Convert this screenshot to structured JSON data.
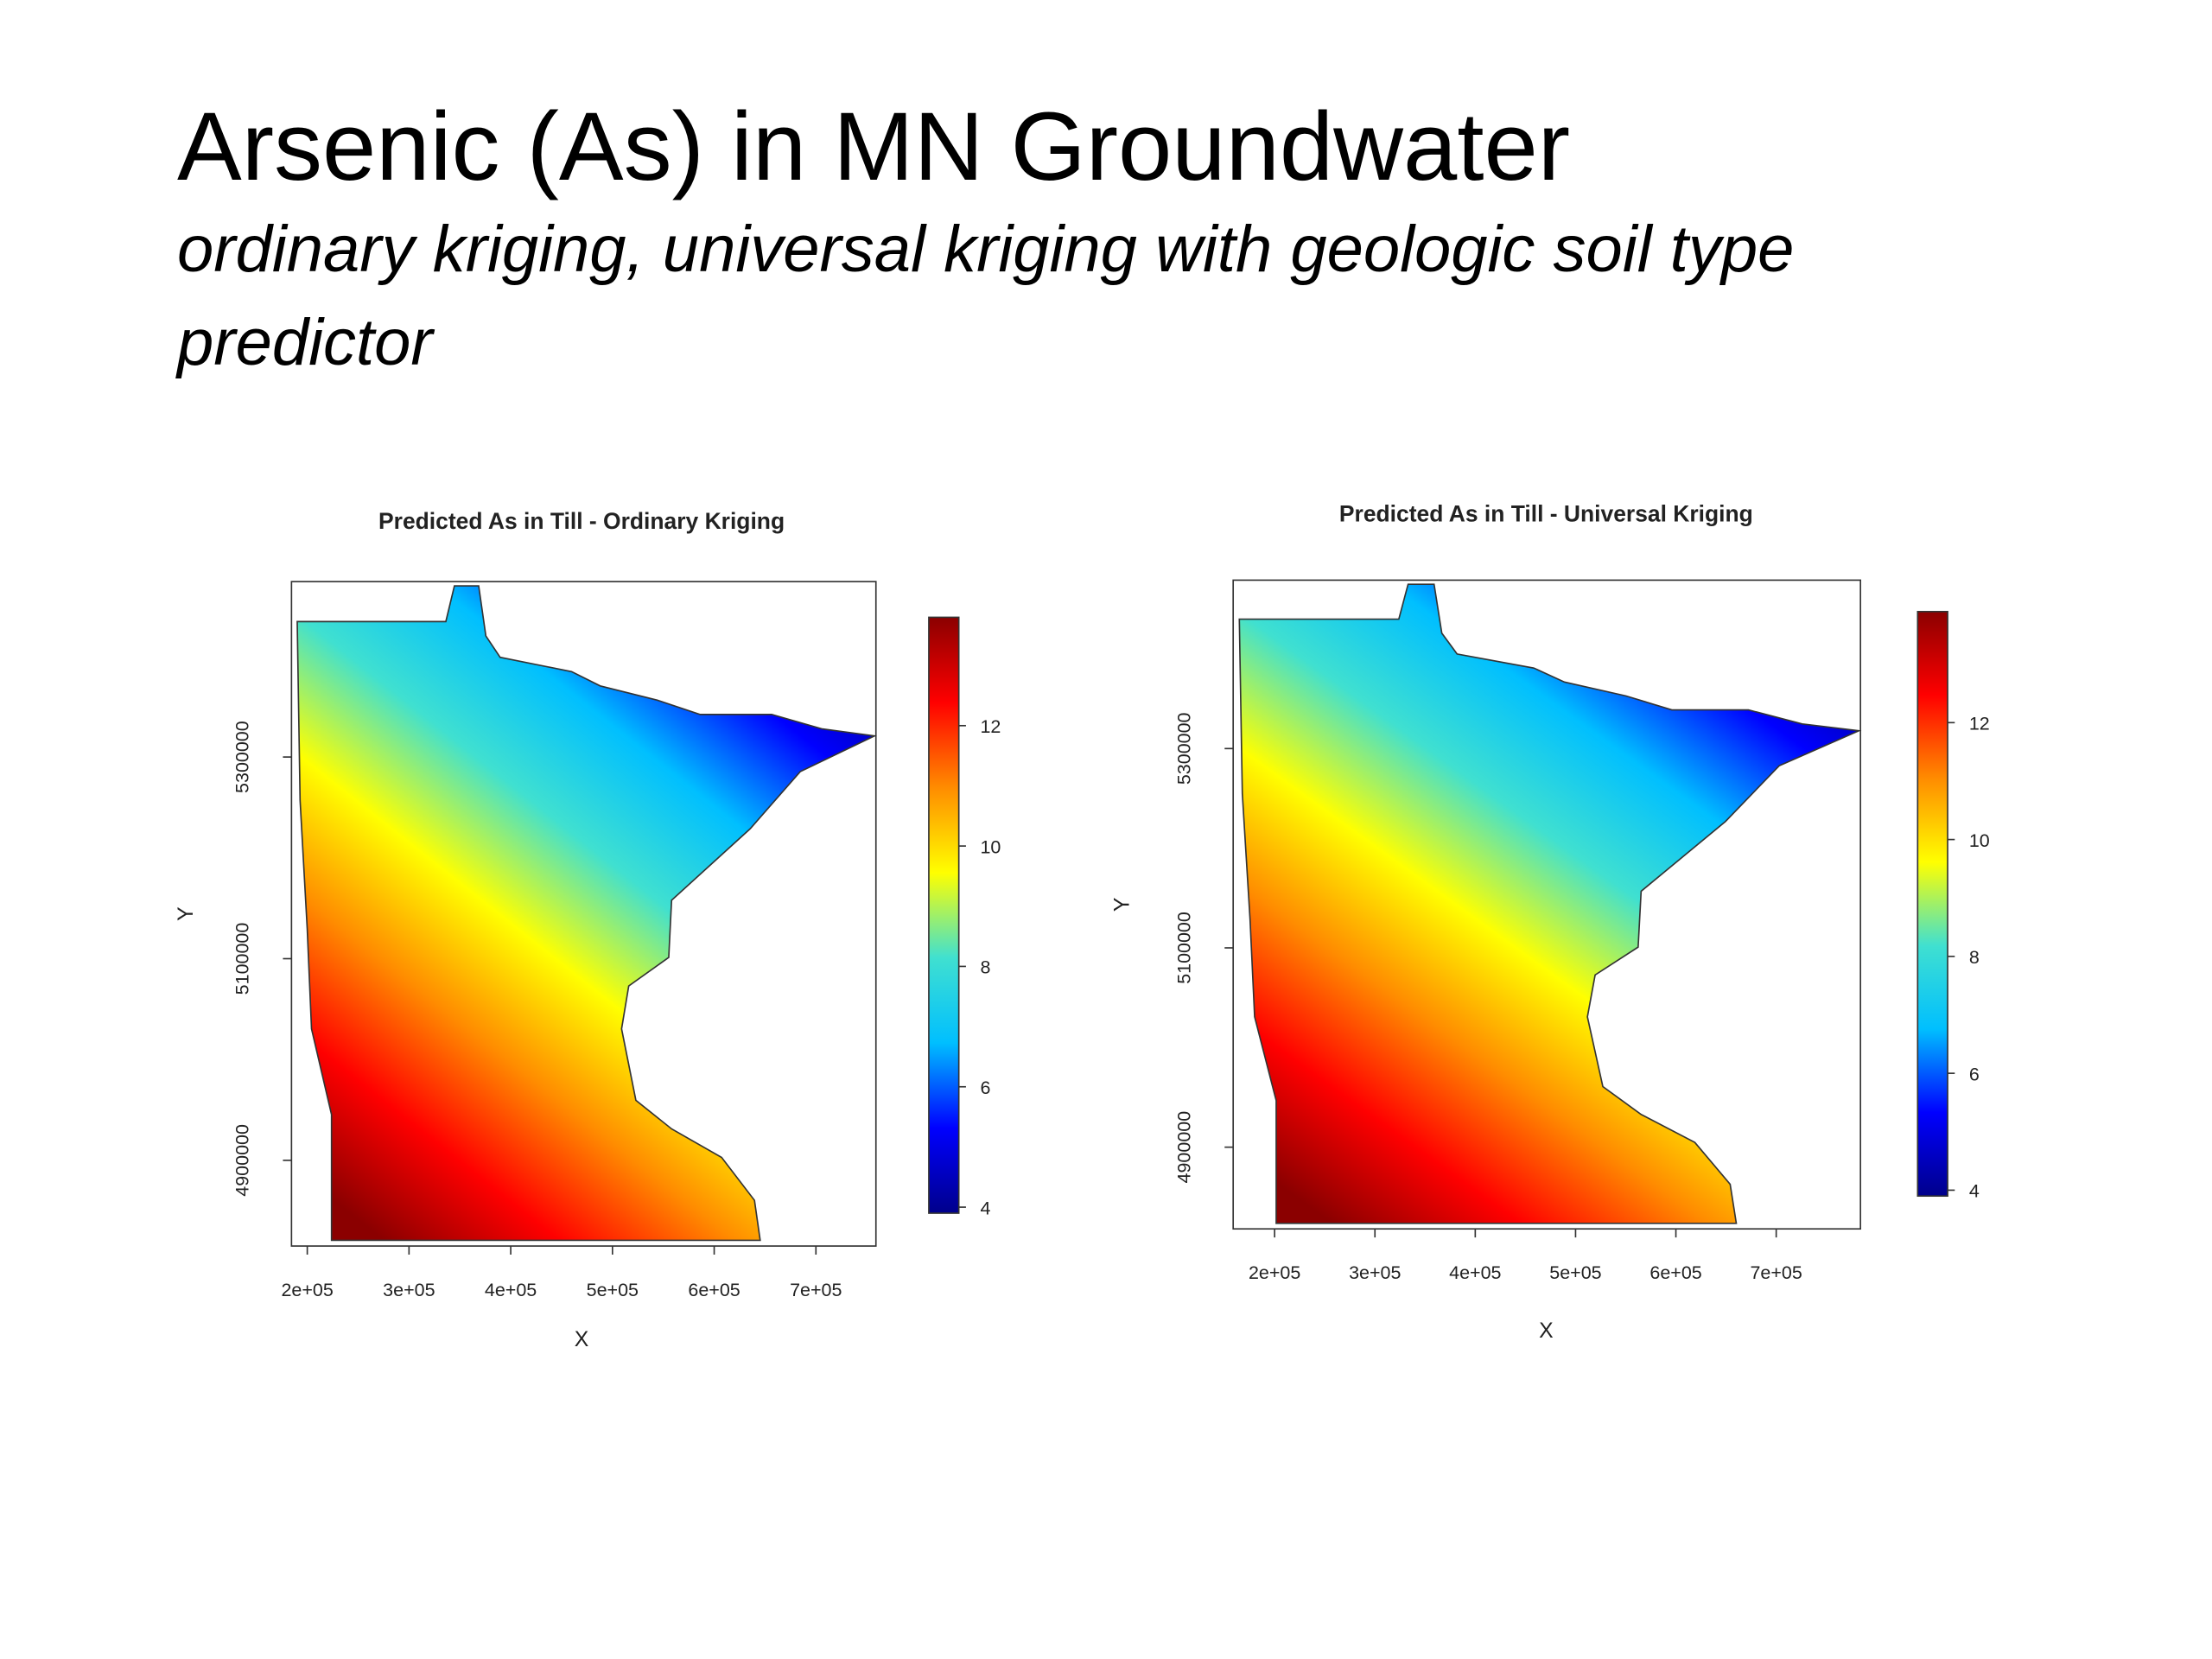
{
  "slide": {
    "title": "Arsenic (As) in MN Groundwater",
    "subtitle": "ordinary kriging, universal kriging with geologic soil type predictor"
  },
  "chart_data": [
    {
      "type": "heatmap",
      "title": "Predicted As in Till - Ordinary Kriging",
      "xlabel": "X",
      "ylabel": "Y",
      "xlim": [
        184500,
        759000
      ],
      "xticks": [
        {
          "value": 200000,
          "label": "2e+05"
        },
        {
          "value": 300000,
          "label": "3e+05"
        },
        {
          "value": 400000,
          "label": "4e+05"
        },
        {
          "value": 500000,
          "label": "5e+05"
        },
        {
          "value": 600000,
          "label": "6e+05"
        },
        {
          "value": 700000,
          "label": "7e+05"
        }
      ],
      "ylim": [
        4815000,
        5474000
      ],
      "yticks": [
        4900000,
        5100000,
        5300000
      ],
      "colorbar": {
        "lim": [
          3.9,
          13.8
        ],
        "ticks": [
          4,
          6,
          8,
          10,
          12
        ],
        "colors": [
          "#00008b",
          "#0000ff",
          "#00bfff",
          "#40e0d0",
          "#ffff00",
          "#ff8c00",
          "#ff0000",
          "#8b0000"
        ]
      }
    },
    {
      "type": "heatmap",
      "title": "Predicted As in Till - Universal Kriging",
      "xlabel": "X",
      "ylabel": "Y",
      "xlim": [
        158700,
        784000
      ],
      "xticks": [
        {
          "value": 200000,
          "label": "2e+05"
        },
        {
          "value": 300000,
          "label": "3e+05"
        },
        {
          "value": 400000,
          "label": "4e+05"
        },
        {
          "value": 500000,
          "label": "5e+05"
        },
        {
          "value": 600000,
          "label": "6e+05"
        },
        {
          "value": 700000,
          "label": "7e+05"
        }
      ],
      "ylim": [
        4818000,
        5469000
      ],
      "yticks": [
        4900000,
        5100000,
        5300000
      ],
      "colorbar": {
        "lim": [
          3.9,
          13.9
        ],
        "ticks": [
          4,
          6,
          8,
          10,
          12
        ],
        "colors": [
          "#00008b",
          "#0000ff",
          "#00bfff",
          "#40e0d0",
          "#ffff00",
          "#ff8c00",
          "#ff0000",
          "#8b0000"
        ]
      }
    }
  ]
}
